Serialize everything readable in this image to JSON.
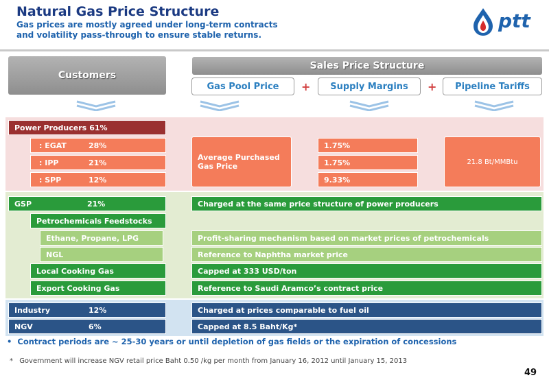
{
  "header": {
    "title": "Natural Gas Price Structure",
    "subtitle_line1": "Gas prices are mostly agreed under long-term contracts",
    "subtitle_line2": "and volatility pass-through to ensure stable returns.",
    "logo_text": "ptt"
  },
  "columns": {
    "customers": "Customers",
    "sales_price_structure": "Sales Price Structure",
    "gas_pool_price": "Gas Pool Price",
    "supply_margins": "Supply Margins",
    "pipeline_tariffs": "Pipeline Tariffs",
    "plus": "+"
  },
  "power": {
    "label": "Power Producers",
    "pct": "61%",
    "egat_label": ": EGAT",
    "egat_pct": "28%",
    "ipp_label": ": IPP",
    "ipp_pct": "21%",
    "spp_label": ": SPP",
    "spp_pct": "12%",
    "gas_pool_line1": "Average Purchased",
    "gas_pool_line2": "Gas Price",
    "margin_egat": "1.75%",
    "margin_ipp": "1.75%",
    "margin_spp": "9.33%",
    "tariff": "21.8 Bt/MMBtu"
  },
  "gsp": {
    "label": "GSP",
    "pct": "21%",
    "price": "Charged at the same price structure of power producers",
    "petro": "Petrochemicals Feedstocks",
    "ethane": "Ethane, Propane, LPG",
    "ethane_price": "Profit-sharing mechanism based on market prices of petrochemicals",
    "ngl": "NGL",
    "ngl_price": "Reference to Naphtha market price",
    "local": "Local Cooking Gas",
    "local_price": "Capped at 333 USD/ton",
    "export": "Export Cooking Gas",
    "export_price": "Reference to Saudi Aramco’s contract price"
  },
  "industry": {
    "label": "Industry",
    "pct": "12%",
    "price": "Charged at prices comparable to fuel oil"
  },
  "ngv": {
    "label": "NGV",
    "pct": "6%",
    "price": "Capped at 8.5 Baht/Kg*"
  },
  "footer": {
    "bullet": "Contract periods are ~ 25-30 years or until depletion of gas fields or the expiration of concessions",
    "note": "Government will increase NGV retail price  Baht 0.50 /kg per month from January 16, 2012 until January 15, 2013",
    "page_number": "49"
  },
  "colors": {
    "title": "#1b3a82",
    "power_dark": "#9a3030",
    "power_orange": "#f47c5a",
    "gsp_green": "#2a9b3b",
    "gsp_light_green": "#a6d07f",
    "industry_navy": "#2b5487"
  }
}
